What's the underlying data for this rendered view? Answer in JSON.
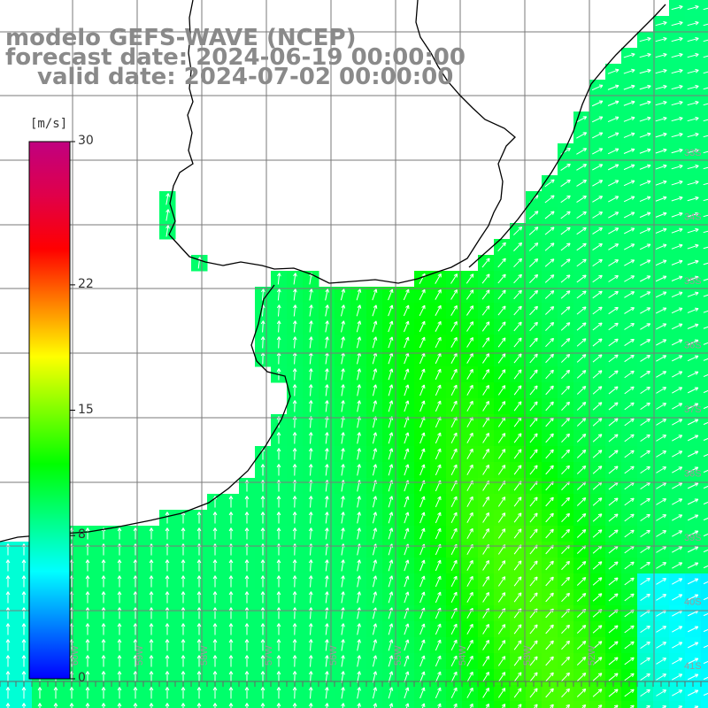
{
  "title": {
    "line1": "modelo GEFS-WAVE (NCEP)",
    "line2": "forecast date: 2024-06-19 00:00:00",
    "line3": "valid date: 2024-07-02 00:00:00"
  },
  "legend": {
    "unit": "[m/s]",
    "ticks": [
      {
        "label": "30",
        "value": 30
      },
      {
        "label": "22",
        "value": 22
      },
      {
        "label": "15",
        "value": 15
      },
      {
        "label": "8",
        "value": 8
      },
      {
        "label": "0",
        "value": 0
      }
    ],
    "range": [
      0,
      30
    ],
    "colors": [
      "#0000ff",
      "#0080ff",
      "#00ffff",
      "#00ff80",
      "#00ff00",
      "#80ff00",
      "#ffff00",
      "#ff8000",
      "#ff0000",
      "#e0004a",
      "#c00080"
    ]
  },
  "lat_labels": [
    "33S",
    "34S",
    "35S",
    "36S",
    "37S",
    "38S",
    "39S",
    "40S",
    "41S"
  ],
  "lon_labels": [
    "60W",
    "59W",
    "58W",
    "57W",
    "56W",
    "55W",
    "54W",
    "53W",
    "52W"
  ],
  "colors": {
    "title": "#8a8a8a",
    "grid": "#7a7a7a",
    "coast": "#000000",
    "arrow": "#ffffff",
    "land": "#ffffff"
  }
}
